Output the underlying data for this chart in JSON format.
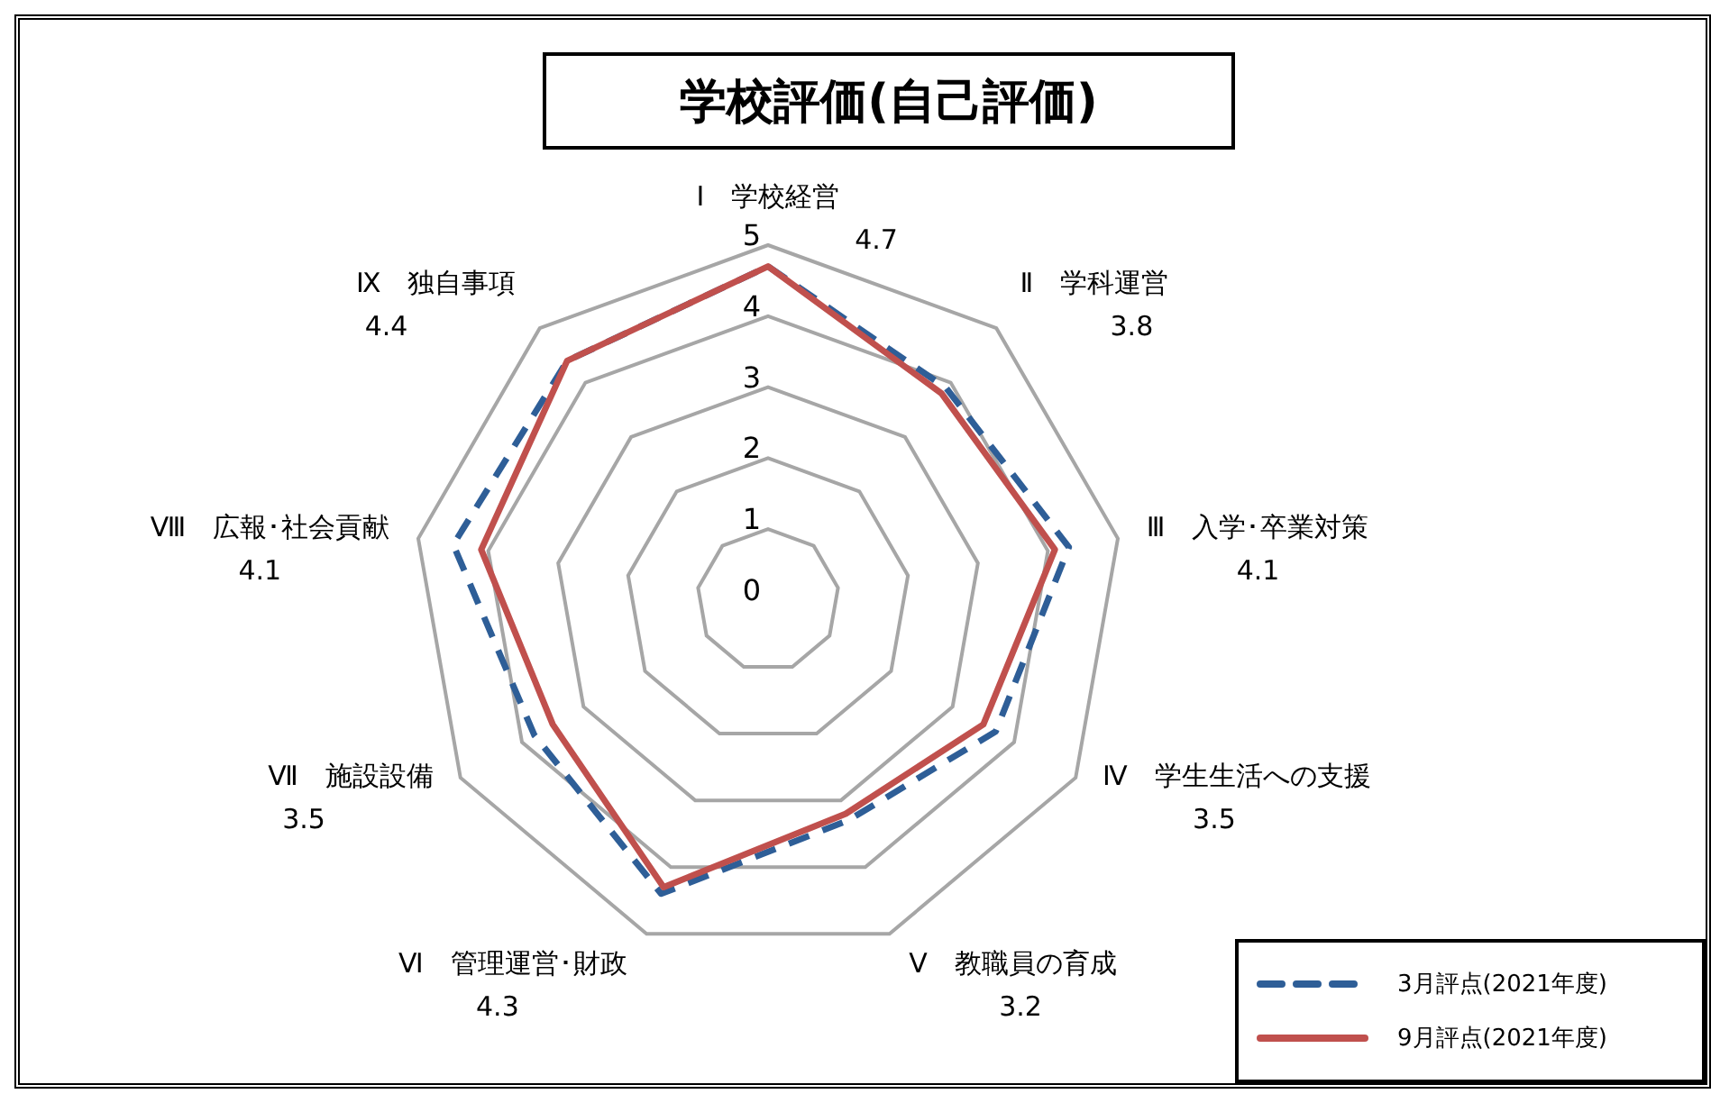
{
  "chart_data": {
    "type": "radar",
    "title": "学校評価(自己評価)",
    "categories": [
      "Ⅰ　学校経営\n4.7",
      "Ⅱ　学科運営\n3.8",
      "Ⅲ　入学･卒業対策\n4.1",
      "Ⅳ　学生生活への支援\n3.5",
      "Ⅴ　教職員の育成\n3.2",
      "Ⅵ　管理運営･財政\n4.3",
      "Ⅶ　施設設備\n3.5",
      "Ⅷ　広報･社会貢献\n4.1",
      "Ⅸ　独自事項\n4.4"
    ],
    "ylim": [
      0,
      5
    ],
    "yticks": [
      0,
      1,
      2,
      3,
      4,
      5
    ],
    "grid": true,
    "legend": "bottom right",
    "series": [
      {
        "name": "3月評点(2021年度)",
        "color": "#2e5e97",
        "line_style": "dashed",
        "values": [
          4.7,
          3.9,
          4.3,
          3.7,
          3.3,
          4.4,
          3.8,
          4.5,
          4.4
        ]
      },
      {
        "name": "9月評点(2021年度)",
        "color": "#c0504d",
        "line_style": "solid",
        "values": [
          4.7,
          3.8,
          4.1,
          3.5,
          3.2,
          4.3,
          3.5,
          4.1,
          4.4
        ]
      }
    ]
  }
}
